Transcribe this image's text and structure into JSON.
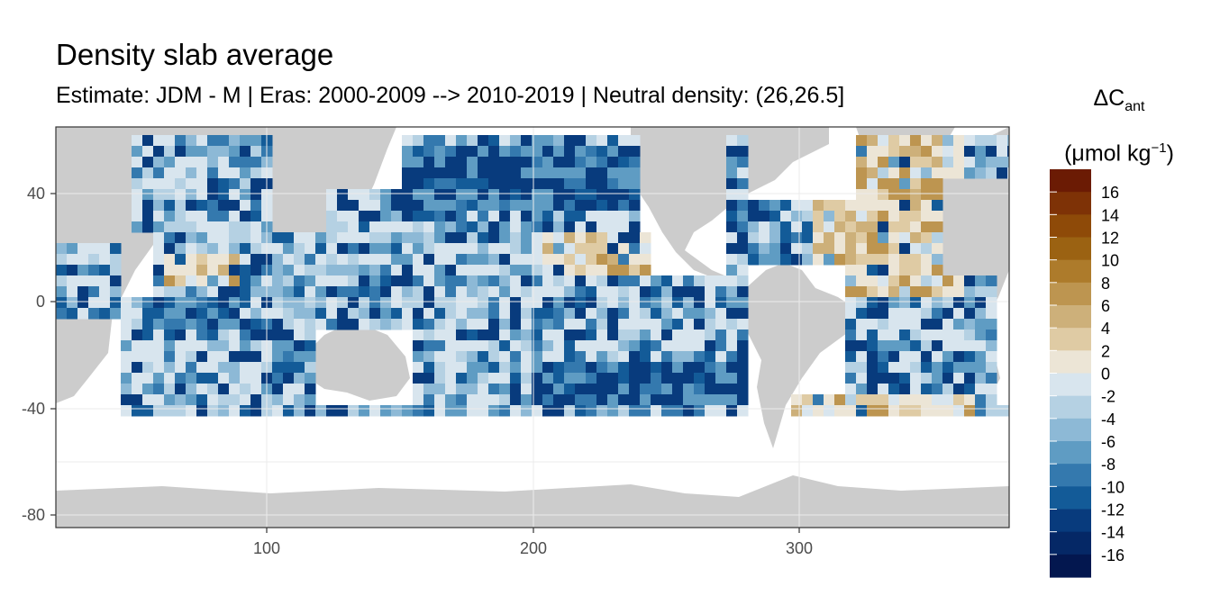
{
  "title": "Density slab average",
  "subtitle": "Estimate: JDM - M | Eras: 2000-2009 --> 2010-2019 | Neutral density: (26,26.5]",
  "legend": {
    "title_symbol": "ΔC",
    "title_subscript": "ant",
    "unit_prefix": "(μmol kg",
    "unit_exponent": "−1",
    "unit_suffix": ")",
    "labels": [
      "16",
      "14",
      "12",
      "10",
      "8",
      "6",
      "4",
      "2",
      "0",
      "-2",
      "-4",
      "-6",
      "-8",
      "-10",
      "-12",
      "-14",
      "-16"
    ],
    "colors": [
      "#6b1b04",
      "#7e3206",
      "#8e4a08",
      "#9b6212",
      "#ad7b2b",
      "#bd9550",
      "#cdb07a",
      "#dfcba4",
      "#ece5d6",
      "#d8e5ee",
      "#b5d1e3",
      "#8db9d6",
      "#5f9cc3",
      "#3479ae",
      "#135b98",
      "#083b7d",
      "#052866",
      "#03174f"
    ]
  },
  "axes": {
    "x_ticks": [
      "100",
      "200",
      "300"
    ],
    "y_ticks": [
      "40",
      "0",
      "-40",
      "-80"
    ]
  },
  "map": {
    "land_color": "#cccccc",
    "nodata_color": "#ffffff",
    "x_range": [
      20,
      380
    ],
    "y_range": [
      -85,
      65
    ]
  }
}
